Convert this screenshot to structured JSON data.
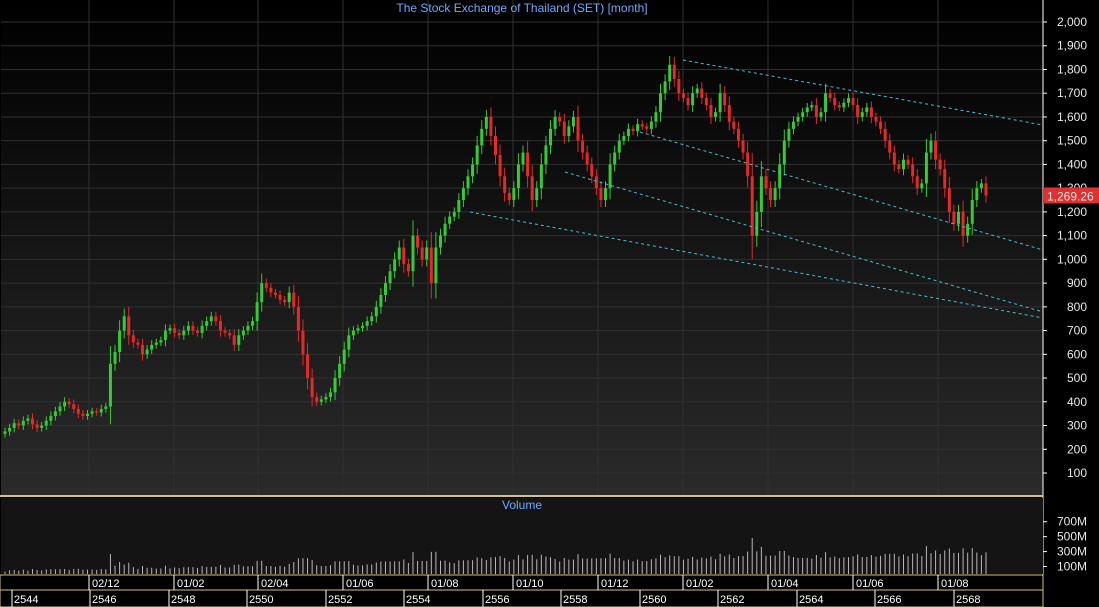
{
  "chart_data": [
    {
      "type": "candlestick",
      "title": "The Stock Exchange of Thailand (SET) [month]",
      "ylim": [
        0,
        2100
      ],
      "y_ticks": [
        "100",
        "200",
        "300",
        "400",
        "500",
        "600",
        "700",
        "800",
        "900",
        "1,000",
        "1,100",
        "1,200",
        "1,300",
        "1,400",
        "1,500",
        "1,600",
        "1,700",
        "1,800",
        "1,900",
        "2,000"
      ],
      "y_tick_values": [
        100,
        200,
        300,
        400,
        500,
        600,
        700,
        800,
        900,
        1000,
        1100,
        1200,
        1300,
        1400,
        1500,
        1600,
        1700,
        1800,
        1900,
        2000
      ],
      "last_price_label": "1,269.26",
      "last_price": 1269.26,
      "x_ticks_upper": [
        "02/12",
        "01/02",
        "02/04",
        "01/06",
        "01/08",
        "01/10",
        "01/12",
        "01/02",
        "01/04",
        "01/06",
        "01/08"
      ],
      "x_ticks_lower": [
        "2544",
        "2546",
        "2548",
        "2550",
        "2552",
        "2554",
        "2556",
        "2558",
        "2560",
        "2562",
        "2564",
        "2566",
        "2568"
      ],
      "colors": {
        "up": "#33cc33",
        "down": "#e62828",
        "trend": "#40c0d0",
        "title": "#6fa8ff",
        "grid": "#2a2a2a"
      },
      "series_close": [
        275,
        290,
        310,
        300,
        320,
        330,
        305,
        290,
        300,
        320,
        340,
        360,
        380,
        400,
        390,
        370,
        350,
        340,
        350,
        360,
        355,
        370,
        380,
        560,
        610,
        700,
        760,
        680,
        650,
        640,
        600,
        620,
        640,
        650,
        660,
        700,
        710,
        690,
        680,
        700,
        720,
        700,
        690,
        720,
        740,
        760,
        740,
        700,
        690,
        680,
        640,
        680,
        700,
        720,
        740,
        820,
        900,
        880,
        860,
        850,
        830,
        820,
        860,
        800,
        700,
        600,
        500,
        420,
        400,
        410,
        420,
        440,
        500,
        560,
        620,
        680,
        700,
        710,
        720,
        740,
        760,
        800,
        850,
        900,
        950,
        1000,
        1050,
        980,
        950,
        1100,
        1050,
        1000,
        1050,
        900,
        1050,
        1100,
        1150,
        1180,
        1200,
        1250,
        1300,
        1350,
        1400,
        1480,
        1550,
        1600,
        1520,
        1440,
        1350,
        1280,
        1250,
        1300,
        1400,
        1450,
        1350,
        1250,
        1300,
        1400,
        1480,
        1550,
        1600,
        1580,
        1520,
        1560,
        1600,
        1500,
        1450,
        1400,
        1350,
        1300,
        1250,
        1300,
        1400,
        1450,
        1500,
        1520,
        1550,
        1540,
        1570,
        1560,
        1550,
        1580,
        1620,
        1700,
        1750,
        1820,
        1760,
        1700,
        1680,
        1650,
        1700,
        1720,
        1680,
        1650,
        1600,
        1620,
        1700,
        1650,
        1580,
        1550,
        1500,
        1450,
        1350,
        1100,
        1200,
        1350,
        1300,
        1250,
        1300,
        1400,
        1500,
        1550,
        1580,
        1600,
        1620,
        1640,
        1650,
        1600,
        1620,
        1700,
        1680,
        1650,
        1640,
        1660,
        1680,
        1650,
        1600,
        1620,
        1640,
        1600,
        1580,
        1550,
        1500,
        1450,
        1400,
        1380,
        1420,
        1400,
        1350,
        1300,
        1320,
        1450,
        1500,
        1420,
        1380,
        1300,
        1200,
        1150,
        1200,
        1100,
        1150,
        1250,
        1300,
        1320,
        1269.26
      ]
    },
    {
      "type": "bar",
      "title": "Volume",
      "y_ticks": [
        "100M",
        "300M",
        "500M",
        "700M"
      ],
      "y_tick_values": [
        100,
        300,
        500,
        700
      ],
      "ylim": [
        0,
        830
      ],
      "unit": "M"
    }
  ]
}
